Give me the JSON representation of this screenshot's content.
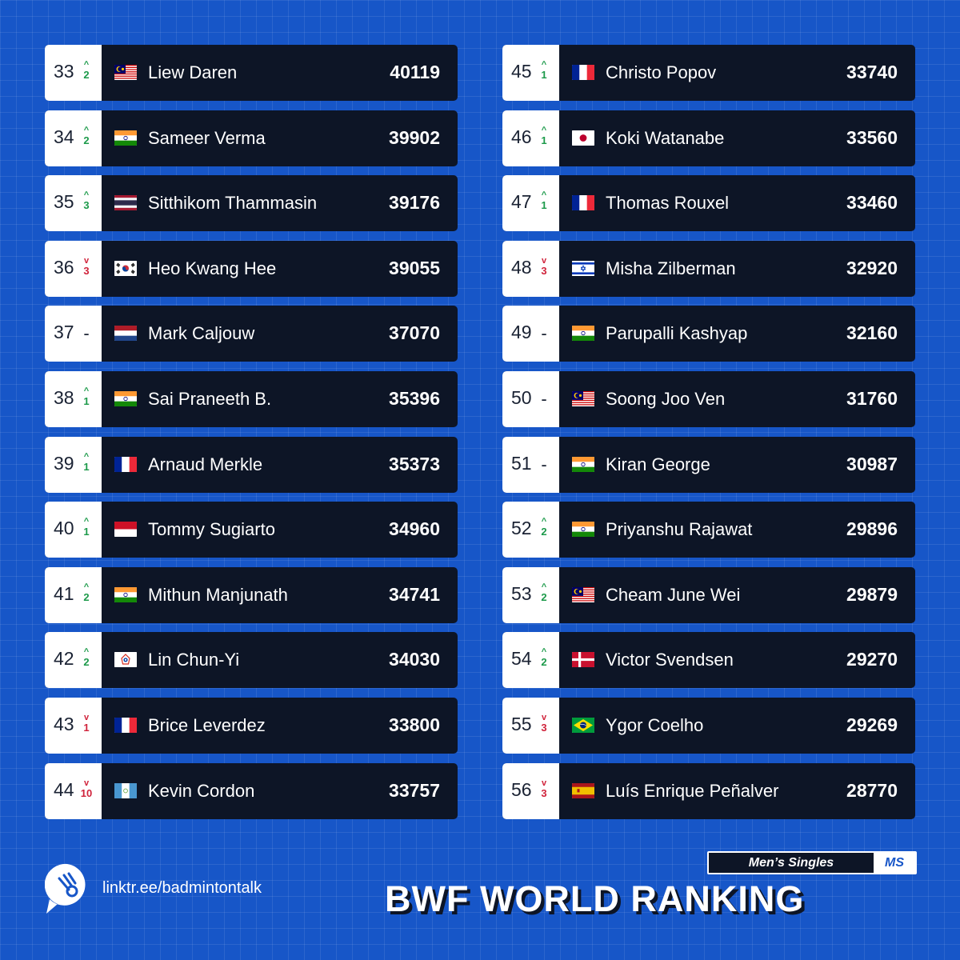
{
  "columns": [
    {
      "rows": [
        {
          "rank": "33",
          "trend": "up",
          "change": "2",
          "flag": "malaysia-flag-icon",
          "name": "Liew Daren",
          "points": "40119"
        },
        {
          "rank": "34",
          "trend": "up",
          "change": "2",
          "flag": "india-flag-icon",
          "name": "Sameer Verma",
          "points": "39902"
        },
        {
          "rank": "35",
          "trend": "up",
          "change": "3",
          "flag": "thailand-flag-icon",
          "name": "Sitthikom Thammasin",
          "points": "39176"
        },
        {
          "rank": "36",
          "trend": "down",
          "change": "3",
          "flag": "korea-flag-icon",
          "name": "Heo Kwang Hee",
          "points": "39055"
        },
        {
          "rank": "37",
          "trend": "same",
          "change": "-",
          "flag": "netherlands-flag-icon",
          "name": "Mark Caljouw",
          "points": "37070"
        },
        {
          "rank": "38",
          "trend": "up",
          "change": "1",
          "flag": "india-flag-icon",
          "name": "Sai Praneeth B.",
          "points": "35396"
        },
        {
          "rank": "39",
          "trend": "up",
          "change": "1",
          "flag": "france-flag-icon",
          "name": "Arnaud Merkle",
          "points": "35373"
        },
        {
          "rank": "40",
          "trend": "up",
          "change": "1",
          "flag": "indonesia-flag-icon",
          "name": "Tommy Sugiarto",
          "points": "34960"
        },
        {
          "rank": "41",
          "trend": "up",
          "change": "2",
          "flag": "india-flag-icon",
          "name": "Mithun Manjunath",
          "points": "34741"
        },
        {
          "rank": "42",
          "trend": "up",
          "change": "2",
          "flag": "chinese-taipei-flag-icon",
          "name": "Lin Chun-Yi",
          "points": "34030"
        },
        {
          "rank": "43",
          "trend": "down",
          "change": "1",
          "flag": "france-flag-icon",
          "name": "Brice Leverdez",
          "points": "33800"
        },
        {
          "rank": "44",
          "trend": "down",
          "change": "10",
          "flag": "guatemala-flag-icon",
          "name": "Kevin Cordon",
          "points": "33757"
        }
      ]
    },
    {
      "rows": [
        {
          "rank": "45",
          "trend": "up",
          "change": "1",
          "flag": "france-flag-icon",
          "name": "Christo Popov",
          "points": "33740"
        },
        {
          "rank": "46",
          "trend": "up",
          "change": "1",
          "flag": "japan-flag-icon",
          "name": "Koki Watanabe",
          "points": "33560"
        },
        {
          "rank": "47",
          "trend": "up",
          "change": "1",
          "flag": "france-flag-icon",
          "name": "Thomas Rouxel",
          "points": "33460"
        },
        {
          "rank": "48",
          "trend": "down",
          "change": "3",
          "flag": "israel-flag-icon",
          "name": "Misha Zilberman",
          "points": "32920"
        },
        {
          "rank": "49",
          "trend": "same",
          "change": "-",
          "flag": "india-flag-icon",
          "name": "Parupalli Kashyap",
          "points": "32160"
        },
        {
          "rank": "50",
          "trend": "same",
          "change": "-",
          "flag": "malaysia-flag-icon",
          "name": "Soong Joo Ven",
          "points": "31760"
        },
        {
          "rank": "51",
          "trend": "same",
          "change": "-",
          "flag": "india-flag-icon",
          "name": "Kiran George",
          "points": "30987"
        },
        {
          "rank": "52",
          "trend": "up",
          "change": "2",
          "flag": "india-flag-icon",
          "name": "Priyanshu Rajawat",
          "points": "29896"
        },
        {
          "rank": "53",
          "trend": "up",
          "change": "2",
          "flag": "malaysia-flag-icon",
          "name": "Cheam June Wei",
          "points": "29879"
        },
        {
          "rank": "54",
          "trend": "up",
          "change": "2",
          "flag": "denmark-flag-icon",
          "name": "Victor Svendsen",
          "points": "29270"
        },
        {
          "rank": "55",
          "trend": "down",
          "change": "3",
          "flag": "brazil-flag-icon",
          "name": "Ygor Coelho",
          "points": "29269"
        },
        {
          "rank": "56",
          "trend": "down",
          "change": "3",
          "flag": "spain-flag-icon",
          "name": "Luís Enrique Peñalver",
          "points": "28770"
        }
      ]
    }
  ],
  "footer": {
    "logo_icon": "shuttlecock-logo-icon",
    "link": "linktr.ee/badmintontalk",
    "category_label": "Men’s Singles",
    "category_code": "MS",
    "title": "BWF WORLD RANKING"
  },
  "colors": {
    "background": "#1756c8",
    "row": "#0d1526",
    "up": "#1c9a4a",
    "down": "#d0233b"
  }
}
